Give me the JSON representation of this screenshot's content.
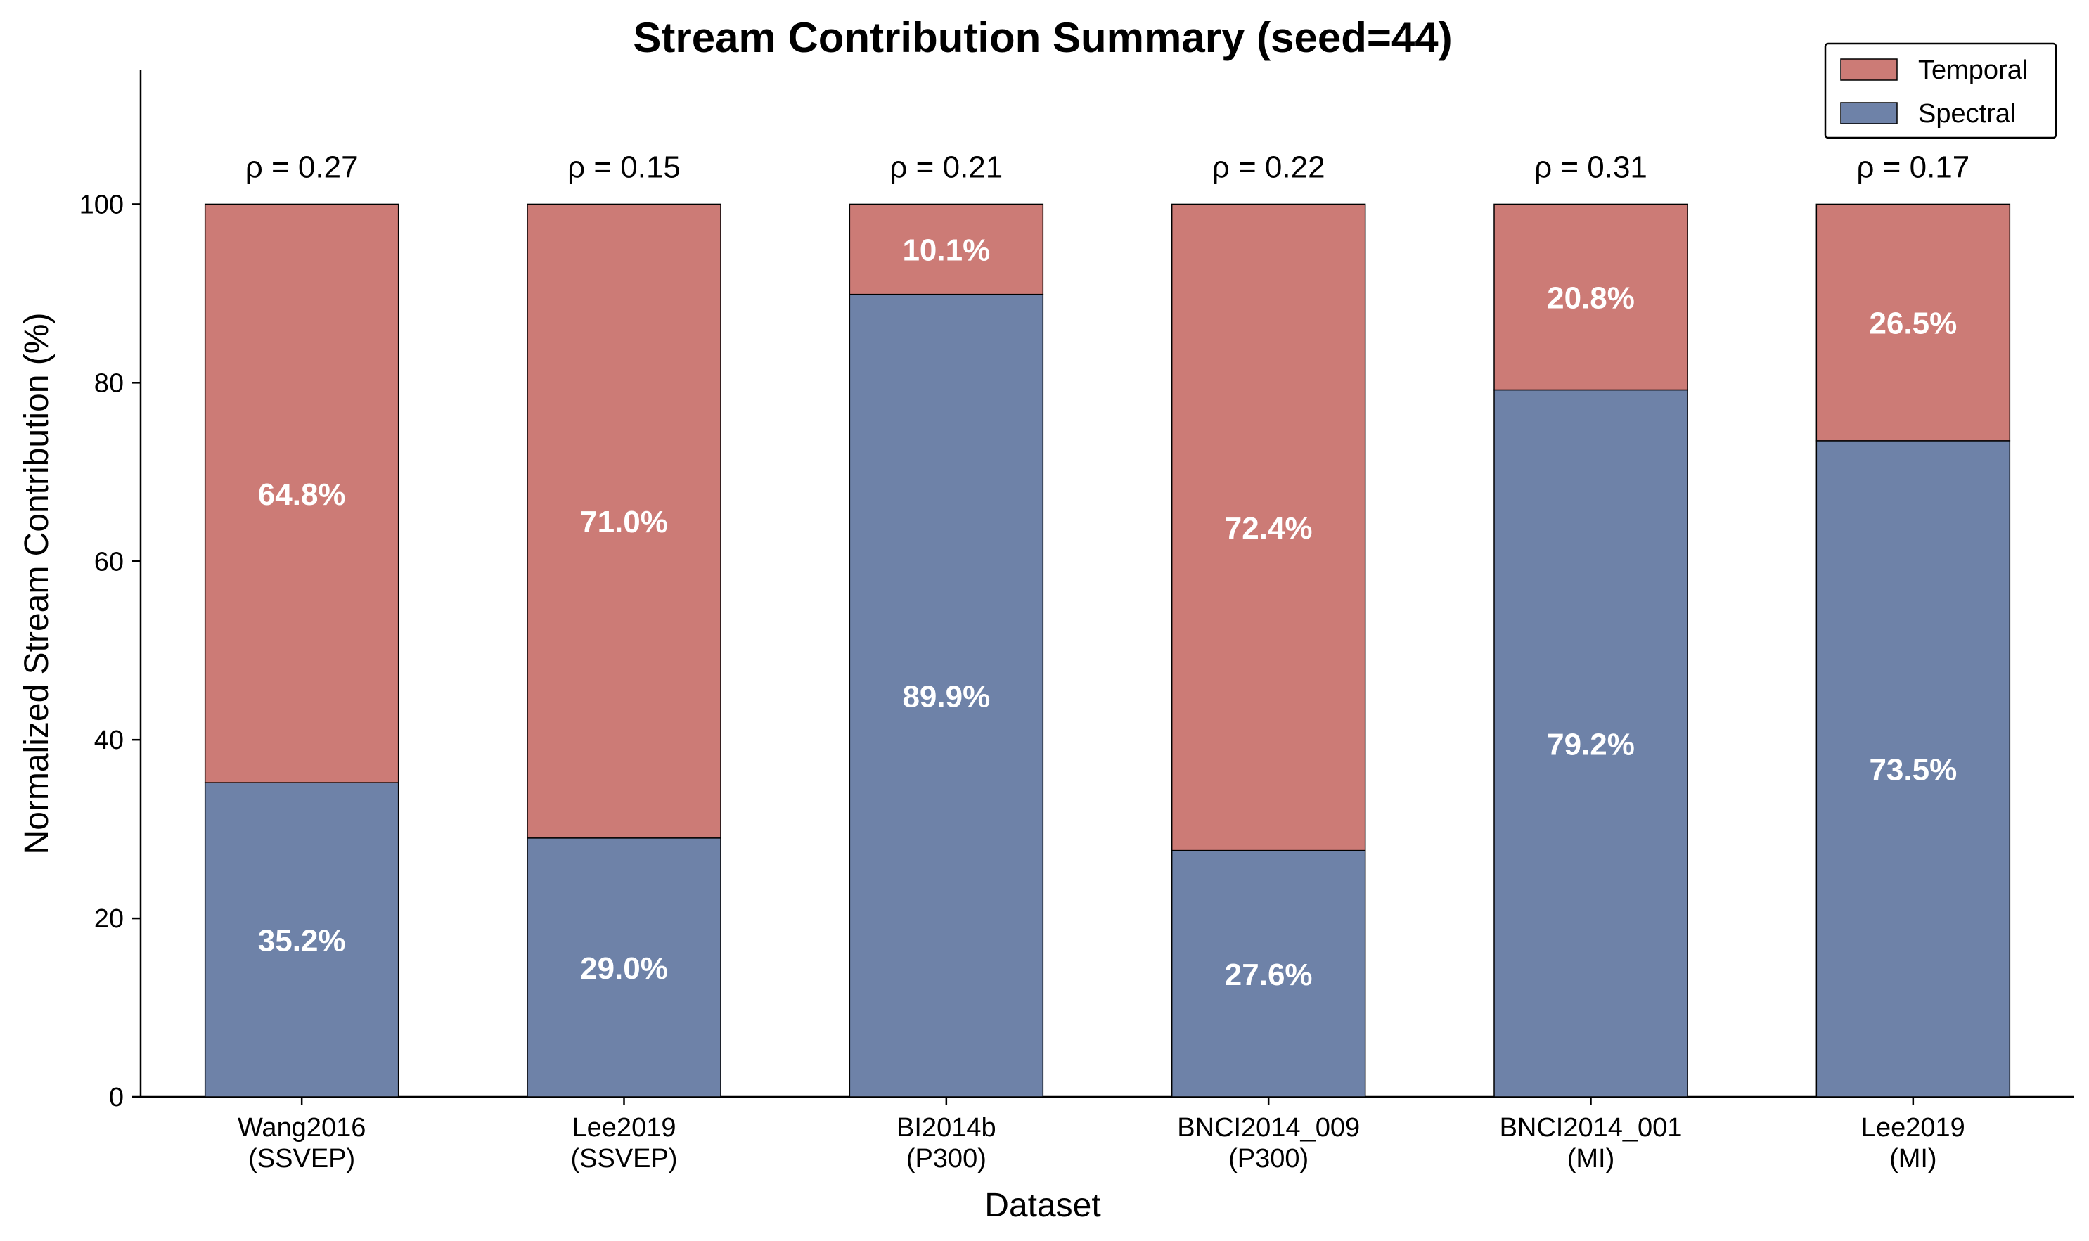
{
  "chart_data": {
    "type": "bar",
    "stacked": true,
    "title": "Stream Contribution Summary (seed=44)",
    "xlabel": "Dataset",
    "ylabel": "Normalized Stream Contribution (%)",
    "ylim": [
      0,
      115
    ],
    "yticks": [
      0,
      20,
      40,
      60,
      80,
      100
    ],
    "categories": [
      [
        "Wang2016",
        "(SSVEP)"
      ],
      [
        "Lee2019",
        "(SSVEP)"
      ],
      [
        "BI2014b",
        "(P300)"
      ],
      [
        "BNCI2014_009",
        "(P300)"
      ],
      [
        "BNCI2014_001",
        "(MI)"
      ],
      [
        "Lee2019",
        "(MI)"
      ]
    ],
    "series": [
      {
        "name": "Spectral",
        "color": "#6e82a8",
        "values": [
          35.2,
          29.0,
          89.9,
          27.6,
          79.2,
          73.5
        ],
        "labels": [
          "35.2%",
          "29.0%",
          "89.9%",
          "27.6%",
          "79.2%",
          "73.5%"
        ]
      },
      {
        "name": "Temporal",
        "color": "#cc7b76",
        "values": [
          64.8,
          71.0,
          10.1,
          72.4,
          20.8,
          26.5
        ],
        "labels": [
          "64.8%",
          "71.0%",
          "10.1%",
          "72.4%",
          "20.8%",
          "26.5%"
        ]
      }
    ],
    "annotations": [
      "ρ = 0.27",
      "ρ = 0.15",
      "ρ = 0.21",
      "ρ = 0.22",
      "ρ = 0.31",
      "ρ = 0.17"
    ],
    "legend": {
      "position": "top-right",
      "entries": [
        {
          "name": "Temporal",
          "color": "#cc7b76"
        },
        {
          "name": "Spectral",
          "color": "#6e82a8"
        }
      ]
    },
    "grid": false
  }
}
